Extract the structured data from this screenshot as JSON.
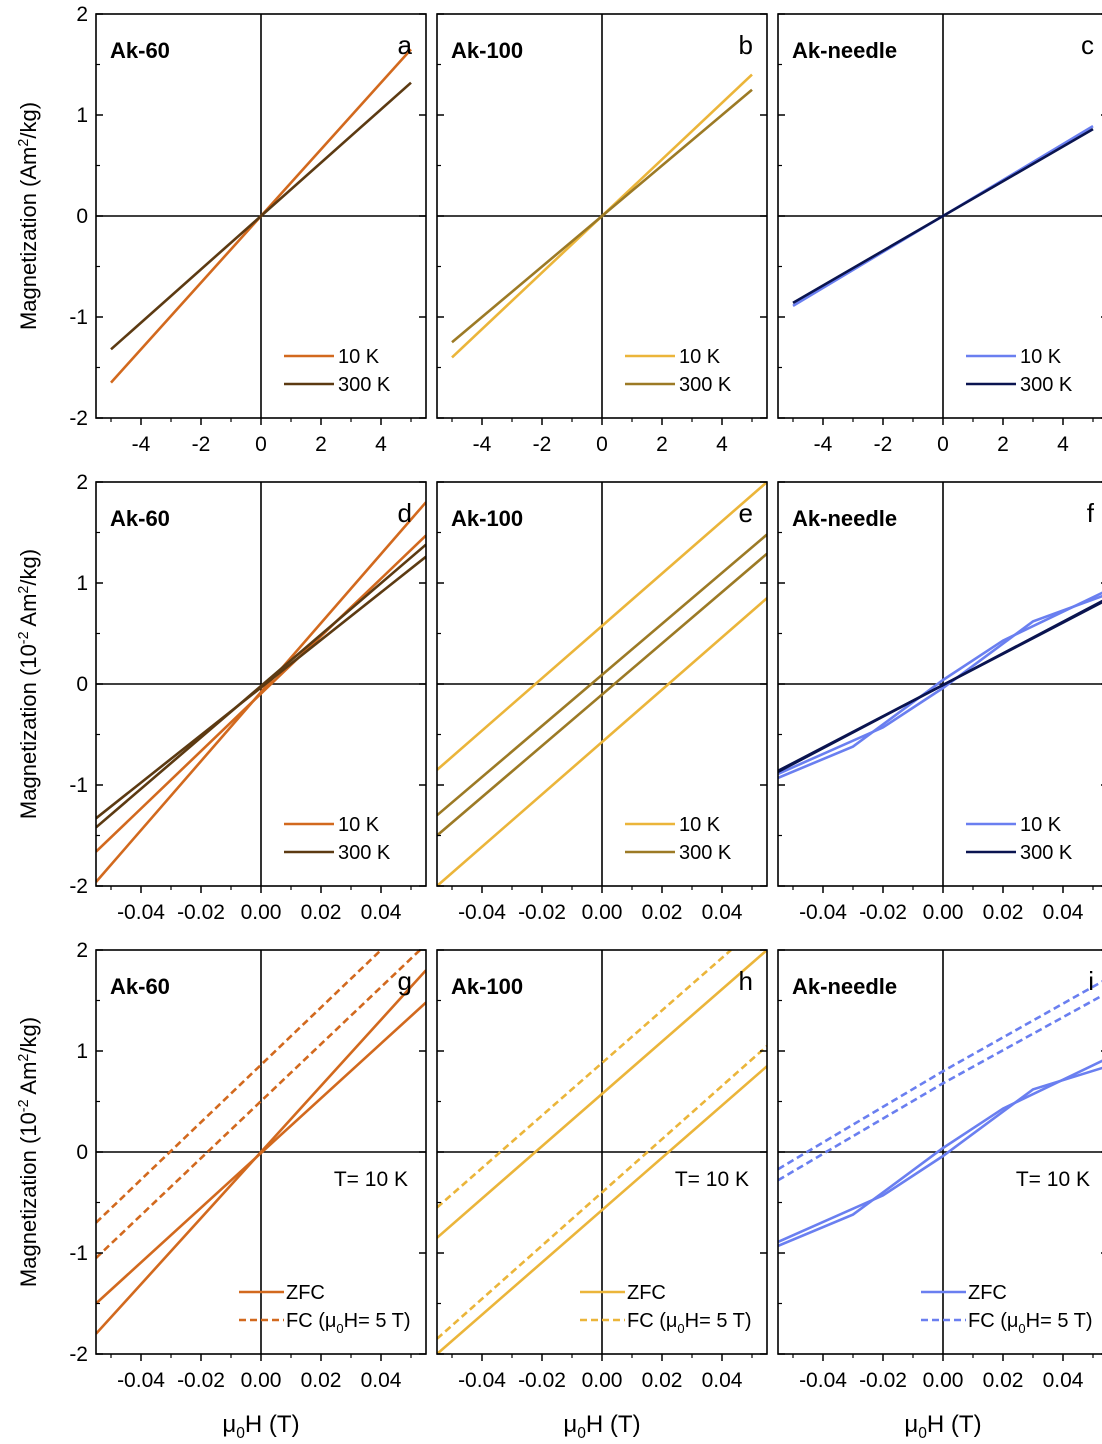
{
  "chart_data": [
    {
      "id": "a",
      "type": "line",
      "title": "Ak-60",
      "panel_label": "a",
      "ylabel_parts": [
        "Magnetization (Am",
        "2",
        "/kg)"
      ],
      "xlabel_parts": [],
      "xlim": [
        -5.5,
        5.5
      ],
      "ylim": [
        -2,
        2
      ],
      "xticks": [
        -4,
        -2,
        0,
        2,
        4
      ],
      "xtick_labels": [
        "-4",
        "-2",
        "0",
        "2",
        "4"
      ],
      "yticks": [
        -2,
        -1,
        0,
        1,
        2
      ],
      "ytick_labels": [
        "-2",
        "-1",
        "0",
        "1",
        "2"
      ],
      "legend_position": "bottom-right",
      "series": [
        {
          "name": "10 K",
          "color": "#D2691E",
          "dash": false,
          "segments": [
            [
              [
                -5,
                -1.65
              ],
              [
                5,
                1.65
              ]
            ]
          ]
        },
        {
          "name": "300 K",
          "color": "#5C3A12",
          "dash": false,
          "segments": [
            [
              [
                -5,
                -1.32
              ],
              [
                5,
                1.32
              ]
            ]
          ]
        }
      ]
    },
    {
      "id": "b",
      "type": "line",
      "title": "Ak-100",
      "panel_label": "b",
      "ylabel_parts": [],
      "xlabel_parts": [],
      "xlim": [
        -5.5,
        5.5
      ],
      "ylim": [
        -2,
        2
      ],
      "xticks": [
        -4,
        -2,
        0,
        2,
        4
      ],
      "xtick_labels": [
        "-4",
        "-2",
        "0",
        "2",
        "4"
      ],
      "yticks": [
        -2,
        -1,
        0,
        1,
        2
      ],
      "ytick_labels": [],
      "legend_position": "bottom-right",
      "series": [
        {
          "name": "10 K",
          "color": "#EBB53A",
          "dash": false,
          "segments": [
            [
              [
                -5,
                -1.4
              ],
              [
                5,
                1.4
              ]
            ]
          ]
        },
        {
          "name": "300 K",
          "color": "#9C7A25",
          "dash": false,
          "segments": [
            [
              [
                -5,
                -1.25
              ],
              [
                5,
                1.25
              ]
            ]
          ]
        }
      ]
    },
    {
      "id": "c",
      "type": "line",
      "title": "Ak-needle",
      "panel_label": "c",
      "ylabel_parts": [],
      "xlabel_parts": [],
      "xlim": [
        -5.5,
        5.5
      ],
      "ylim": [
        -2,
        2
      ],
      "xticks": [
        -4,
        -2,
        0,
        2,
        4
      ],
      "xtick_labels": [
        "-4",
        "-2",
        "0",
        "2",
        "4"
      ],
      "yticks": [
        -2,
        -1,
        0,
        1,
        2
      ],
      "ytick_labels": [],
      "legend_position": "bottom-right",
      "series": [
        {
          "name": "10 K",
          "color": "#6A7FF0",
          "dash": false,
          "segments": [
            [
              [
                -5,
                -0.89
              ],
              [
                5,
                0.89
              ]
            ]
          ]
        },
        {
          "name": "300 K",
          "color": "#0A1450",
          "dash": false,
          "segments": [
            [
              [
                -5,
                -0.86
              ],
              [
                5,
                0.86
              ]
            ]
          ]
        }
      ]
    },
    {
      "id": "d",
      "type": "line",
      "title": "Ak-60",
      "panel_label": "d",
      "ylabel_parts": [
        "Magnetization (10",
        "-2",
        " Am",
        "2",
        "/kg)"
      ],
      "xlabel_parts": [],
      "xlim": [
        -0.055,
        0.055
      ],
      "ylim": [
        -2,
        2
      ],
      "xticks": [
        -0.04,
        -0.02,
        0,
        0.02,
        0.04
      ],
      "xtick_labels": [
        "-0.04",
        "-0.02",
        "0.00",
        "0.02",
        "0.04"
      ],
      "yticks": [
        -2,
        -1,
        0,
        1,
        2
      ],
      "ytick_labels": [
        "-2",
        "-1",
        "0",
        "1",
        "2"
      ],
      "legend_position": "bottom-right",
      "series": [
        {
          "name": "10 K",
          "color": "#D2691E",
          "dash": false,
          "segments": [
            [
              [
                -0.055,
                -1.96
              ],
              [
                0.055,
                1.8
              ]
            ],
            [
              [
                -0.055,
                -1.66
              ],
              [
                0.055,
                1.47
              ]
            ]
          ]
        },
        {
          "name": "300 K",
          "color": "#5C3A12",
          "dash": false,
          "segments": [
            [
              [
                -0.055,
                -1.42
              ],
              [
                0.055,
                1.38
              ]
            ],
            [
              [
                -0.055,
                -1.33
              ],
              [
                0.055,
                1.26
              ]
            ]
          ]
        }
      ]
    },
    {
      "id": "e",
      "type": "line",
      "title": "Ak-100",
      "panel_label": "e",
      "ylabel_parts": [],
      "xlabel_parts": [],
      "xlim": [
        -0.055,
        0.055
      ],
      "ylim": [
        -2,
        2
      ],
      "xticks": [
        -0.04,
        -0.02,
        0,
        0.02,
        0.04
      ],
      "xtick_labels": [
        "-0.04",
        "-0.02",
        "0.00",
        "0.02",
        "0.04"
      ],
      "yticks": [
        -2,
        -1,
        0,
        1,
        2
      ],
      "ytick_labels": [],
      "legend_position": "bottom-right",
      "series": [
        {
          "name": "10 K",
          "color": "#EBB53A",
          "dash": false,
          "segments": [
            [
              [
                -0.055,
                -0.85
              ],
              [
                0.055,
                2.0
              ]
            ],
            [
              [
                -0.055,
                -2.0
              ],
              [
                0.055,
                0.85
              ]
            ]
          ]
        },
        {
          "name": "300 K",
          "color": "#9C7A25",
          "dash": false,
          "segments": [
            [
              [
                -0.055,
                -1.3
              ],
              [
                0.055,
                1.48
              ]
            ],
            [
              [
                -0.055,
                -1.5
              ],
              [
                0.055,
                1.29
              ]
            ]
          ]
        }
      ]
    },
    {
      "id": "f",
      "type": "line",
      "title": "Ak-needle",
      "panel_label": "f",
      "ylabel_parts": [],
      "xlabel_parts": [],
      "xlim": [
        -0.055,
        0.055
      ],
      "ylim": [
        -2,
        2
      ],
      "xticks": [
        -0.04,
        -0.02,
        0,
        0.02,
        0.04
      ],
      "xtick_labels": [
        "-0.04",
        "-0.02",
        "0.00",
        "0.02",
        "0.04"
      ],
      "yticks": [
        -2,
        -1,
        0,
        1,
        2
      ],
      "ytick_labels": [],
      "legend_position": "bottom-right",
      "series": [
        {
          "name": "10 K",
          "color": "#6A7FF0",
          "dash": false,
          "segments": [
            [
              [
                -0.055,
                -0.93
              ],
              [
                -0.03,
                -0.62
              ],
              [
                0,
                0.04
              ],
              [
                0.02,
                0.43
              ],
              [
                0.055,
                0.93
              ]
            ],
            [
              [
                -0.055,
                -0.89
              ],
              [
                -0.02,
                -0.43
              ],
              [
                0,
                -0.04
              ],
              [
                0.03,
                0.62
              ],
              [
                0.055,
                0.89
              ]
            ]
          ]
        },
        {
          "name": "300 K",
          "color": "#0A1450",
          "dash": false,
          "segments": [
            [
              [
                -0.055,
                -0.87
              ],
              [
                0.055,
                0.85
              ]
            ],
            [
              [
                -0.055,
                -0.86
              ],
              [
                0.055,
                0.84
              ]
            ]
          ]
        }
      ]
    },
    {
      "id": "g",
      "type": "line",
      "title": "Ak-60",
      "panel_label": "g",
      "annotation": "T= 10 K",
      "ylabel_parts": [
        "Magnetization (10",
        "-2",
        " Am",
        "2",
        "/kg)"
      ],
      "xlabel_parts": [
        "μ",
        "0",
        "H (T)"
      ],
      "xlim": [
        -0.055,
        0.055
      ],
      "ylim": [
        -2,
        2
      ],
      "xticks": [
        -0.04,
        -0.02,
        0,
        0.02,
        0.04
      ],
      "xtick_labels": [
        "-0.04",
        "-0.02",
        "0.00",
        "0.02",
        "0.04"
      ],
      "yticks": [
        -2,
        -1,
        0,
        1,
        2
      ],
      "ytick_labels": [
        "-2",
        "-1",
        "0",
        "1",
        "2"
      ],
      "legend_position": "bottom-right",
      "series": [
        {
          "name": "ZFC",
          "color": "#D2691E",
          "dash": false,
          "segments": [
            [
              [
                -0.055,
                -1.8
              ],
              [
                0.055,
                1.8
              ]
            ],
            [
              [
                -0.055,
                -1.5
              ],
              [
                0.055,
                1.48
              ]
            ]
          ]
        },
        {
          "name_parts": [
            "FC (μ",
            "0",
            "H= 5 T)"
          ],
          "color": "#D2691E",
          "dash": true,
          "segments": [
            [
              [
                -0.055,
                -0.7
              ],
              [
                0.04,
                2.0
              ]
            ],
            [
              [
                -0.055,
                -1.05
              ],
              [
                0.053,
                2.0
              ]
            ]
          ]
        }
      ]
    },
    {
      "id": "h",
      "type": "line",
      "title": "Ak-100",
      "panel_label": "h",
      "annotation": "T= 10 K",
      "ylabel_parts": [],
      "xlabel_parts": [
        "μ",
        "0",
        "H (T)"
      ],
      "xlim": [
        -0.055,
        0.055
      ],
      "ylim": [
        -2,
        2
      ],
      "xticks": [
        -0.04,
        -0.02,
        0,
        0.02,
        0.04
      ],
      "xtick_labels": [
        "-0.04",
        "-0.02",
        "0.00",
        "0.02",
        "0.04"
      ],
      "yticks": [
        -2,
        -1,
        0,
        1,
        2
      ],
      "ytick_labels": [],
      "legend_position": "bottom-right",
      "series": [
        {
          "name": "ZFC",
          "color": "#EBB53A",
          "dash": false,
          "segments": [
            [
              [
                -0.055,
                -0.85
              ],
              [
                0.055,
                2.0
              ]
            ],
            [
              [
                -0.055,
                -2.0
              ],
              [
                0.055,
                0.85
              ]
            ]
          ]
        },
        {
          "name_parts": [
            "FC (μ",
            "0",
            "H= 5 T)"
          ],
          "color": "#EBB53A",
          "dash": true,
          "segments": [
            [
              [
                -0.055,
                -0.55
              ],
              [
                0.043,
                2.0
              ]
            ],
            [
              [
                -0.055,
                -1.85
              ],
              [
                0.055,
                1.05
              ]
            ]
          ]
        }
      ]
    },
    {
      "id": "i",
      "type": "line",
      "title": "Ak-needle",
      "panel_label": "i",
      "annotation": "T= 10 K",
      "ylabel_parts": [],
      "xlabel_parts": [
        "μ",
        "0",
        "H (T)"
      ],
      "xlim": [
        -0.055,
        0.055
      ],
      "ylim": [
        -2,
        2
      ],
      "xticks": [
        -0.04,
        -0.02,
        0,
        0.02,
        0.04
      ],
      "xtick_labels": [
        "-0.04",
        "-0.02",
        "0.00",
        "0.02",
        "0.04"
      ],
      "yticks": [
        -2,
        -1,
        0,
        1,
        2
      ],
      "ytick_labels": [],
      "legend_position": "bottom-right",
      "series": [
        {
          "name": "ZFC",
          "color": "#6A7FF0",
          "dash": false,
          "segments": [
            [
              [
                -0.055,
                -0.93
              ],
              [
                -0.03,
                -0.62
              ],
              [
                0,
                0.04
              ],
              [
                0.02,
                0.43
              ],
              [
                0.055,
                0.93
              ]
            ],
            [
              [
                -0.055,
                -0.89
              ],
              [
                -0.02,
                -0.43
              ],
              [
                0,
                -0.04
              ],
              [
                0.03,
                0.62
              ],
              [
                0.055,
                0.85
              ]
            ]
          ]
        },
        {
          "name_parts": [
            "FC (μ",
            "0",
            "H= 5 T)"
          ],
          "color": "#6A7FF0",
          "dash": true,
          "segments": [
            [
              [
                -0.055,
                -0.17
              ],
              [
                0,
                0.8
              ],
              [
                0.055,
                1.72
              ]
            ],
            [
              [
                -0.055,
                -0.28
              ],
              [
                0,
                0.68
              ],
              [
                0.055,
                1.58
              ]
            ]
          ]
        }
      ]
    }
  ]
}
